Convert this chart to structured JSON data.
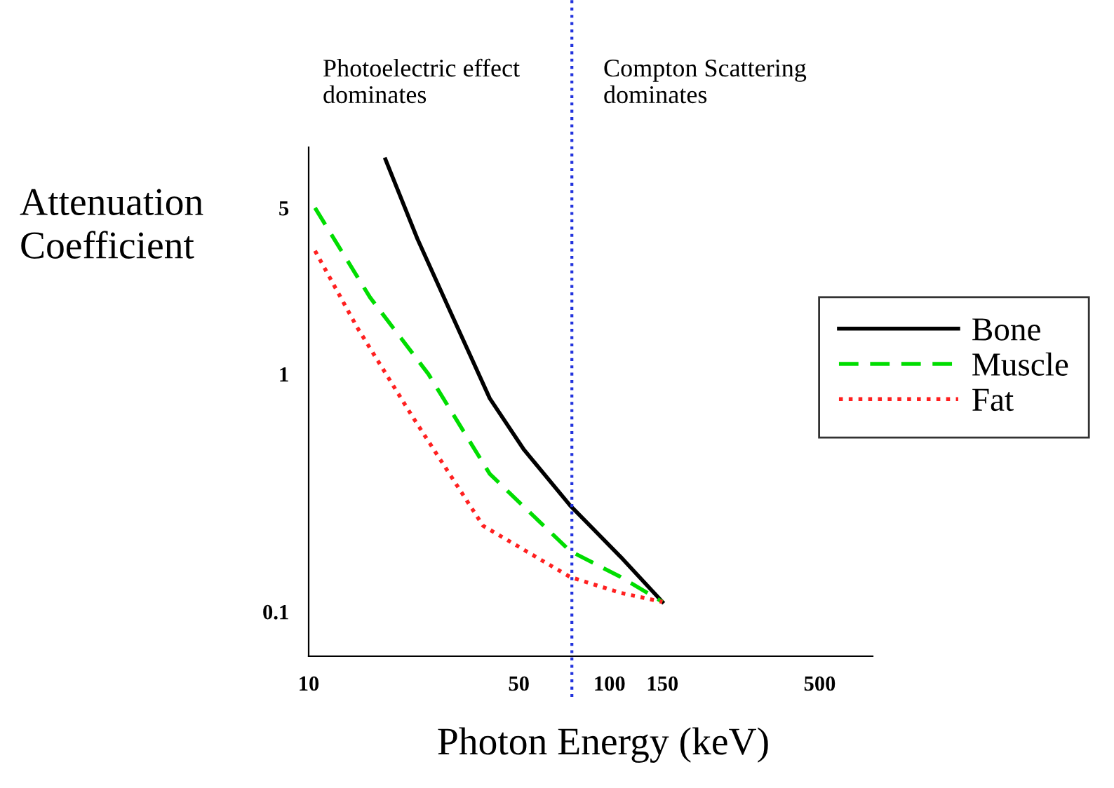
{
  "chart_data": {
    "type": "line",
    "xlabel": "Photon Energy (keV)",
    "ylabel": "Attenuation\nCoefficient",
    "log": "xy",
    "grid": false,
    "legend": "right",
    "marker": "none",
    "xlim": [
      10,
      750
    ],
    "xticks": [
      10,
      50,
      100,
      150,
      500
    ],
    "ylim": [
      0.065,
      9
    ],
    "yticks": [
      0.1,
      1,
      5
    ],
    "series": [
      {
        "name": "Bone",
        "color": "#000000",
        "line_style": "solid",
        "x": [
          18,
          23,
          30,
          40,
          52,
          74,
          109,
          150
        ],
        "values": [
          8,
          3.7,
          1.76,
          0.79,
          0.48,
          0.28,
          0.17,
          0.11
        ]
      },
      {
        "name": "Muscle",
        "color": "#00dd00",
        "line_style": "dashed",
        "x": [
          10.5,
          16,
          25,
          40,
          74,
          109,
          150
        ],
        "values": [
          5,
          2.1,
          1,
          0.38,
          0.18,
          0.14,
          0.11
        ]
      },
      {
        "name": "Fat",
        "color": "#ff2020",
        "line_style": "dotted",
        "x": [
          10.5,
          14.5,
          22,
          38,
          74,
          109,
          150
        ],
        "values": [
          3.3,
          1.57,
          0.67,
          0.23,
          0.14,
          0.12,
          0.11
        ]
      }
    ],
    "ref_lines": [
      {
        "axis": "x",
        "value": 75,
        "color": "#2233dd",
        "line_style": "dotted"
      }
    ],
    "annotations": [
      "Photoelectric effect\ndominates",
      "Compton Scattering\ndominates"
    ]
  }
}
